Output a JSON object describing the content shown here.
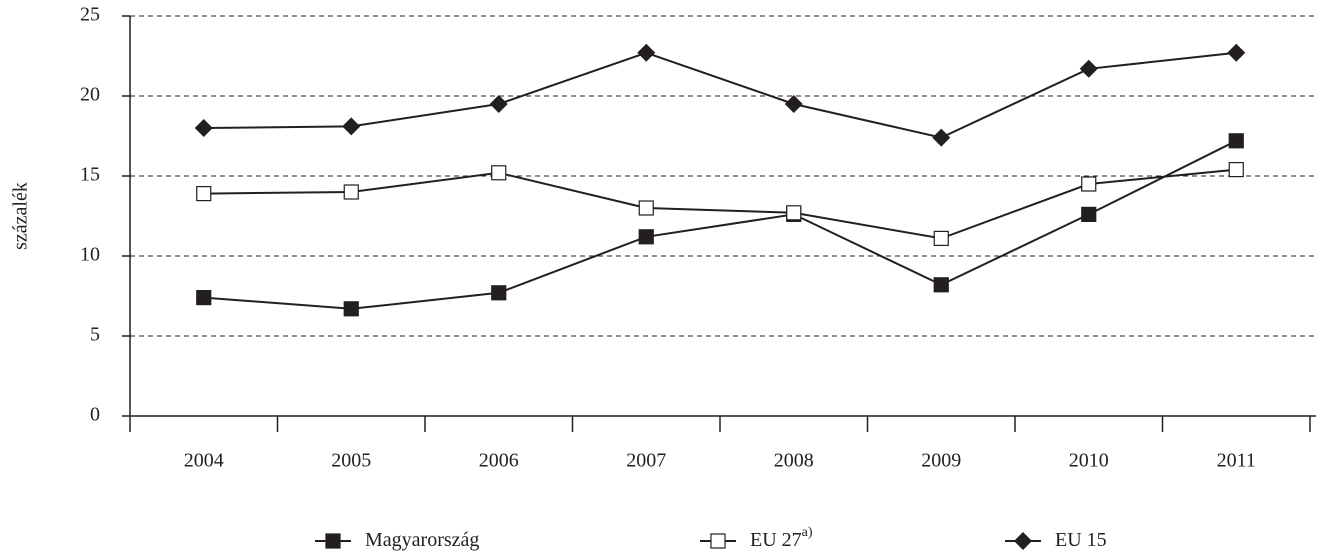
{
  "chart_data": {
    "type": "line",
    "y_label": "százalék",
    "categories": [
      "2004",
      "2005",
      "2006",
      "2007",
      "2008",
      "2009",
      "2010",
      "2011"
    ],
    "series": [
      {
        "name": "Magyarország",
        "color": "#231f20",
        "marker": "square-filled",
        "values": [
          7.4,
          6.7,
          7.7,
          11.2,
          12.6,
          8.2,
          12.6,
          17.2
        ]
      },
      {
        "name": "EU 27",
        "footnote_marker": "a)",
        "color": "#231f20",
        "marker": "square-open",
        "values": [
          13.9,
          14.0,
          15.2,
          13.0,
          12.7,
          11.1,
          14.5,
          15.4
        ]
      },
      {
        "name": "EU 15",
        "color": "#231f20",
        "marker": "diamond-filled",
        "values": [
          18.0,
          18.1,
          19.5,
          22.7,
          19.5,
          17.4,
          21.7,
          22.7
        ]
      }
    ],
    "ylim": [
      0,
      25
    ],
    "yticks": [
      0,
      5,
      10,
      15,
      20,
      25
    ],
    "grid": true,
    "legend": "bottom"
  }
}
